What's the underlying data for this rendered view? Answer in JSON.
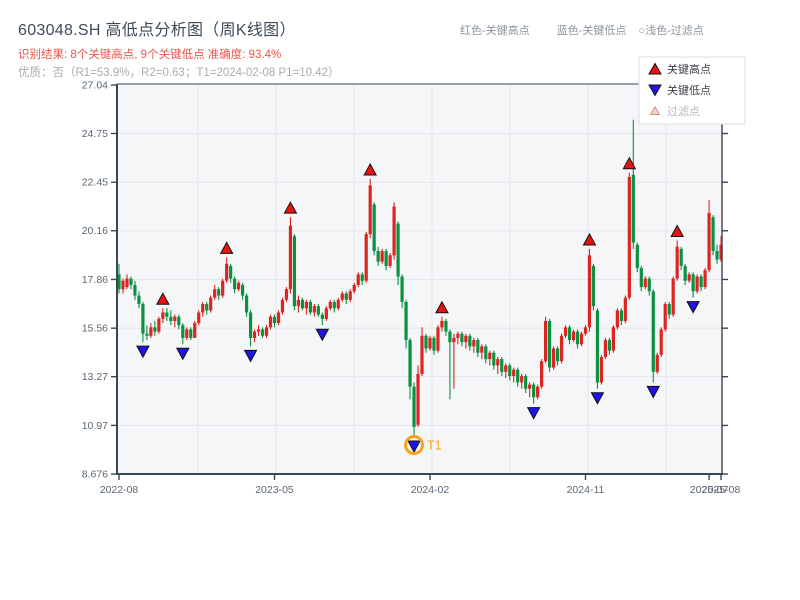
{
  "header": {
    "title": "603048.SH 高低点分析图（周K线图）",
    "recognition_result": "识别结果: 8个关键高点, 9个关键低点  准确度: 93.4%",
    "quality_line": "优质：否（R1=53.9%，R2=0.63；T1=2024-02-08 P1=10.42）",
    "legend_note_items": [
      "红色-关键高点",
      "蓝色-关键低点",
      "○浅色-过滤点"
    ]
  },
  "legend": {
    "items": [
      {
        "label": "关键高点",
        "type": "high",
        "disabled": false
      },
      {
        "label": "关键低点",
        "type": "low",
        "disabled": false
      },
      {
        "label": "过滤点",
        "type": "filtered",
        "disabled": true
      }
    ]
  },
  "colors": {
    "up_candle": "#dc2420",
    "down_candle": "#0a9142",
    "marker_high": "#ee1111",
    "marker_low": "#2013e8",
    "marker_filtered_fill": "#f7d2d0",
    "marker_filtered_stroke": "#d98c86",
    "annotation_orange": "#f5a31d",
    "axis": "#3a4653",
    "tick_label": "#5a6774",
    "grid": "#e3e6ea",
    "plot_bg": "#f4f6f8"
  },
  "chart_data": {
    "type": "candlestick",
    "symbol": "603048.SH",
    "period": "weekly",
    "title": "603048.SH 高低点分析图（周K线图）",
    "y_ticks": [
      27.04,
      24.75,
      22.45,
      20.16,
      17.86,
      15.56,
      13.27,
      10.97,
      8.676
    ],
    "y_range": [
      8.676,
      27.04
    ],
    "x_ticks": [
      {
        "label": "2022-08",
        "week": 0
      },
      {
        "label": "2023-05",
        "week": 39
      },
      {
        "label": "2024-02",
        "week": 78
      },
      {
        "label": "2024-11",
        "week": 117
      },
      {
        "label": "2025-07",
        "week": 148
      },
      {
        "label": "2025-08",
        "week": 151
      }
    ],
    "ohlc": [
      [
        18.1,
        18.6,
        17.2,
        17.4
      ],
      [
        17.4,
        17.9,
        17.2,
        17.8
      ],
      [
        17.5,
        18.1,
        17.4,
        17.9
      ],
      [
        17.9,
        18.0,
        17.4,
        17.6
      ],
      [
        17.6,
        17.8,
        16.9,
        17.1
      ],
      [
        17.1,
        17.3,
        16.5,
        16.7
      ],
      [
        16.7,
        16.8,
        14.9,
        15.3
      ],
      [
        15.3,
        15.7,
        15.0,
        15.2
      ],
      [
        15.2,
        15.8,
        15.1,
        15.6
      ],
      [
        15.6,
        15.9,
        15.2,
        15.4
      ],
      [
        15.4,
        16.1,
        15.3,
        16.0
      ],
      [
        16.0,
        16.5,
        15.8,
        16.3
      ],
      [
        16.3,
        16.5,
        15.9,
        16.1
      ],
      [
        16.1,
        16.4,
        15.7,
        15.9
      ],
      [
        15.9,
        16.2,
        15.6,
        16.1
      ],
      [
        16.1,
        16.2,
        15.5,
        15.7
      ],
      [
        15.7,
        15.8,
        14.8,
        15.1
      ],
      [
        15.1,
        15.6,
        15.0,
        15.5
      ],
      [
        15.5,
        15.6,
        15.0,
        15.1
      ],
      [
        15.1,
        15.9,
        15.1,
        15.8
      ],
      [
        15.8,
        16.4,
        15.7,
        16.3
      ],
      [
        16.3,
        16.8,
        16.1,
        16.7
      ],
      [
        16.7,
        16.8,
        16.2,
        16.4
      ],
      [
        16.4,
        17.1,
        16.3,
        17.0
      ],
      [
        17.0,
        17.6,
        16.9,
        17.4
      ],
      [
        17.4,
        17.5,
        16.9,
        17.1
      ],
      [
        17.1,
        17.9,
        17.0,
        17.8
      ],
      [
        17.8,
        18.9,
        17.7,
        18.6
      ],
      [
        18.5,
        18.6,
        17.7,
        17.9
      ],
      [
        17.9,
        18.0,
        17.2,
        17.4
      ],
      [
        17.4,
        17.8,
        17.3,
        17.7
      ],
      [
        17.6,
        17.7,
        16.9,
        17.1
      ],
      [
        17.1,
        17.2,
        16.1,
        16.3
      ],
      [
        16.3,
        16.4,
        14.7,
        15.1
      ],
      [
        15.1,
        15.5,
        14.9,
        15.4
      ],
      [
        15.4,
        15.7,
        15.2,
        15.5
      ],
      [
        15.5,
        15.6,
        15.1,
        15.2
      ],
      [
        15.2,
        15.7,
        15.1,
        15.6
      ],
      [
        15.6,
        16.2,
        15.5,
        16.1
      ],
      [
        16.1,
        16.2,
        15.6,
        15.8
      ],
      [
        15.8,
        16.4,
        15.7,
        16.3
      ],
      [
        16.3,
        17.0,
        16.2,
        16.9
      ],
      [
        16.9,
        17.5,
        16.8,
        17.4
      ],
      [
        17.4,
        20.8,
        17.2,
        20.4
      ],
      [
        19.9,
        20.0,
        16.4,
        16.6
      ],
      [
        16.6,
        17.1,
        16.3,
        16.9
      ],
      [
        16.9,
        17.0,
        16.4,
        16.5
      ],
      [
        16.5,
        16.9,
        16.2,
        16.8
      ],
      [
        16.8,
        16.9,
        16.2,
        16.3
      ],
      [
        16.3,
        16.7,
        16.1,
        16.6
      ],
      [
        16.6,
        16.7,
        16.1,
        16.2
      ],
      [
        16.2,
        16.3,
        15.7,
        16.0
      ],
      [
        16.0,
        16.6,
        15.9,
        16.5
      ],
      [
        16.5,
        16.9,
        16.4,
        16.8
      ],
      [
        16.8,
        16.9,
        16.3,
        16.5
      ],
      [
        16.5,
        17.0,
        16.4,
        16.9
      ],
      [
        16.9,
        17.3,
        16.8,
        17.2
      ],
      [
        17.2,
        17.3,
        16.7,
        16.9
      ],
      [
        16.9,
        17.4,
        16.8,
        17.3
      ],
      [
        17.3,
        17.7,
        17.2,
        17.6
      ],
      [
        17.6,
        18.2,
        17.5,
        18.1
      ],
      [
        18.1,
        18.2,
        17.6,
        17.8
      ],
      [
        17.8,
        20.1,
        17.7,
        20.0
      ],
      [
        20.0,
        22.6,
        19.8,
        22.3
      ],
      [
        21.4,
        21.5,
        19.0,
        19.2
      ],
      [
        19.2,
        19.4,
        18.5,
        18.7
      ],
      [
        18.7,
        19.3,
        18.6,
        19.2
      ],
      [
        19.2,
        19.3,
        18.3,
        18.5
      ],
      [
        18.5,
        19.1,
        18.4,
        19.0
      ],
      [
        19.0,
        21.5,
        18.8,
        21.3
      ],
      [
        20.5,
        20.6,
        17.6,
        18.0
      ],
      [
        18.0,
        18.1,
        16.5,
        16.8
      ],
      [
        16.8,
        16.9,
        14.6,
        15.0
      ],
      [
        15.0,
        15.1,
        12.2,
        12.8
      ],
      [
        12.8,
        13.0,
        10.42,
        10.9
      ],
      [
        11.0,
        13.8,
        10.9,
        13.4
      ],
      [
        13.4,
        15.6,
        13.3,
        15.2
      ],
      [
        15.2,
        15.3,
        14.4,
        14.6
      ],
      [
        14.6,
        15.2,
        14.5,
        15.1
      ],
      [
        15.1,
        15.2,
        14.3,
        14.5
      ],
      [
        14.5,
        15.7,
        14.4,
        15.6
      ],
      [
        15.6,
        16.1,
        15.4,
        15.9
      ],
      [
        15.9,
        16.0,
        15.2,
        15.4
      ],
      [
        15.4,
        15.5,
        12.2,
        14.9
      ],
      [
        14.9,
        15.3,
        12.7,
        15.1
      ],
      [
        15.1,
        15.4,
        14.8,
        15.3
      ],
      [
        15.3,
        15.4,
        14.7,
        14.9
      ],
      [
        14.9,
        15.3,
        14.6,
        15.2
      ],
      [
        15.2,
        15.3,
        14.5,
        14.7
      ],
      [
        14.7,
        15.1,
        14.4,
        15.0
      ],
      [
        15.0,
        15.1,
        14.2,
        14.4
      ],
      [
        14.4,
        14.8,
        14.1,
        14.7
      ],
      [
        14.7,
        14.8,
        13.9,
        14.1
      ],
      [
        14.1,
        14.5,
        13.8,
        14.4
      ],
      [
        14.4,
        14.5,
        13.6,
        13.8
      ],
      [
        13.8,
        14.2,
        13.4,
        14.1
      ],
      [
        14.1,
        14.2,
        13.3,
        13.5
      ],
      [
        13.5,
        13.9,
        13.2,
        13.8
      ],
      [
        13.8,
        13.9,
        13.1,
        13.3
      ],
      [
        13.3,
        13.7,
        13.0,
        13.6
      ],
      [
        13.6,
        13.7,
        12.8,
        13.0
      ],
      [
        13.0,
        13.4,
        12.7,
        13.3
      ],
      [
        13.3,
        13.4,
        12.5,
        12.7
      ],
      [
        12.7,
        13.0,
        12.3,
        12.9
      ],
      [
        12.9,
        13.0,
        12.0,
        12.3
      ],
      [
        12.3,
        12.9,
        12.2,
        12.8
      ],
      [
        12.8,
        14.1,
        12.7,
        14.0
      ],
      [
        14.0,
        16.1,
        13.9,
        15.9
      ],
      [
        15.9,
        16.0,
        13.5,
        13.7
      ],
      [
        13.7,
        14.7,
        13.6,
        14.6
      ],
      [
        14.6,
        14.7,
        13.8,
        14.0
      ],
      [
        14.0,
        15.3,
        13.9,
        15.2
      ],
      [
        15.2,
        15.7,
        15.1,
        15.6
      ],
      [
        15.6,
        15.7,
        14.8,
        15.0
      ],
      [
        15.0,
        15.5,
        14.9,
        15.4
      ],
      [
        15.4,
        15.5,
        14.6,
        14.8
      ],
      [
        14.8,
        15.4,
        14.7,
        15.3
      ],
      [
        15.3,
        15.7,
        15.2,
        15.6
      ],
      [
        15.6,
        19.3,
        15.4,
        19.0
      ],
      [
        18.5,
        18.6,
        16.4,
        16.6
      ],
      [
        16.4,
        16.5,
        12.7,
        13.0
      ],
      [
        13.0,
        14.3,
        12.9,
        14.2
      ],
      [
        14.2,
        15.1,
        14.1,
        15.0
      ],
      [
        15.0,
        15.1,
        14.3,
        14.5
      ],
      [
        14.5,
        15.7,
        14.4,
        15.6
      ],
      [
        15.6,
        16.5,
        15.5,
        16.4
      ],
      [
        16.4,
        16.5,
        15.7,
        15.9
      ],
      [
        15.9,
        17.1,
        15.8,
        17.0
      ],
      [
        17.0,
        22.9,
        16.9,
        22.7
      ],
      [
        22.8,
        25.4,
        19.3,
        19.6
      ],
      [
        19.5,
        19.6,
        18.2,
        18.4
      ],
      [
        18.4,
        18.5,
        17.3,
        17.5
      ],
      [
        17.5,
        18.0,
        17.4,
        17.9
      ],
      [
        17.9,
        18.0,
        17.1,
        17.3
      ],
      [
        17.3,
        17.4,
        13.0,
        13.5
      ],
      [
        13.5,
        14.4,
        13.4,
        14.3
      ],
      [
        14.3,
        15.6,
        14.2,
        15.5
      ],
      [
        15.5,
        16.8,
        15.4,
        16.7
      ],
      [
        16.7,
        16.8,
        16.0,
        16.2
      ],
      [
        16.2,
        18.0,
        16.1,
        17.9
      ],
      [
        17.9,
        19.7,
        17.8,
        19.4
      ],
      [
        19.3,
        19.4,
        18.3,
        18.5
      ],
      [
        18.5,
        18.6,
        17.6,
        17.8
      ],
      [
        17.8,
        18.2,
        17.7,
        18.1
      ],
      [
        18.1,
        18.2,
        17.0,
        17.3
      ],
      [
        17.3,
        18.1,
        17.2,
        18.0
      ],
      [
        18.0,
        18.1,
        17.3,
        17.5
      ],
      [
        17.5,
        18.4,
        17.4,
        18.3
      ],
      [
        18.3,
        21.6,
        18.2,
        21.0
      ],
      [
        20.8,
        20.9,
        19.0,
        19.2
      ],
      [
        19.2,
        19.5,
        18.6,
        18.8
      ],
      [
        18.8,
        19.9,
        18.7,
        19.5
      ]
    ],
    "key_highs": [
      {
        "week": 11,
        "price": 16.5
      },
      {
        "week": 27,
        "price": 18.9
      },
      {
        "week": 43,
        "price": 20.8
      },
      {
        "week": 63,
        "price": 22.6
      },
      {
        "week": 81,
        "price": 16.1
      },
      {
        "week": 118,
        "price": 19.3
      },
      {
        "week": 128,
        "price": 22.9
      },
      {
        "week": 140,
        "price": 19.7
      }
    ],
    "key_lows": [
      {
        "week": 6,
        "price": 14.9
      },
      {
        "week": 16,
        "price": 14.8
      },
      {
        "week": 33,
        "price": 14.7
      },
      {
        "week": 51,
        "price": 15.7
      },
      {
        "week": 74,
        "price": 10.42
      },
      {
        "week": 104,
        "price": 12.0
      },
      {
        "week": 120,
        "price": 12.7
      },
      {
        "week": 134,
        "price": 13.0
      },
      {
        "week": 144,
        "price": 17.0
      }
    ],
    "annotation": {
      "label": "T1",
      "week": 74,
      "price": 10.42
    },
    "stats": {
      "key_high_count": 8,
      "key_low_count": 9,
      "accuracy": "93.4%",
      "R1": "53.9%",
      "R2": "0.63",
      "T1_date": "2024-02-08",
      "P1": "10.42"
    }
  }
}
